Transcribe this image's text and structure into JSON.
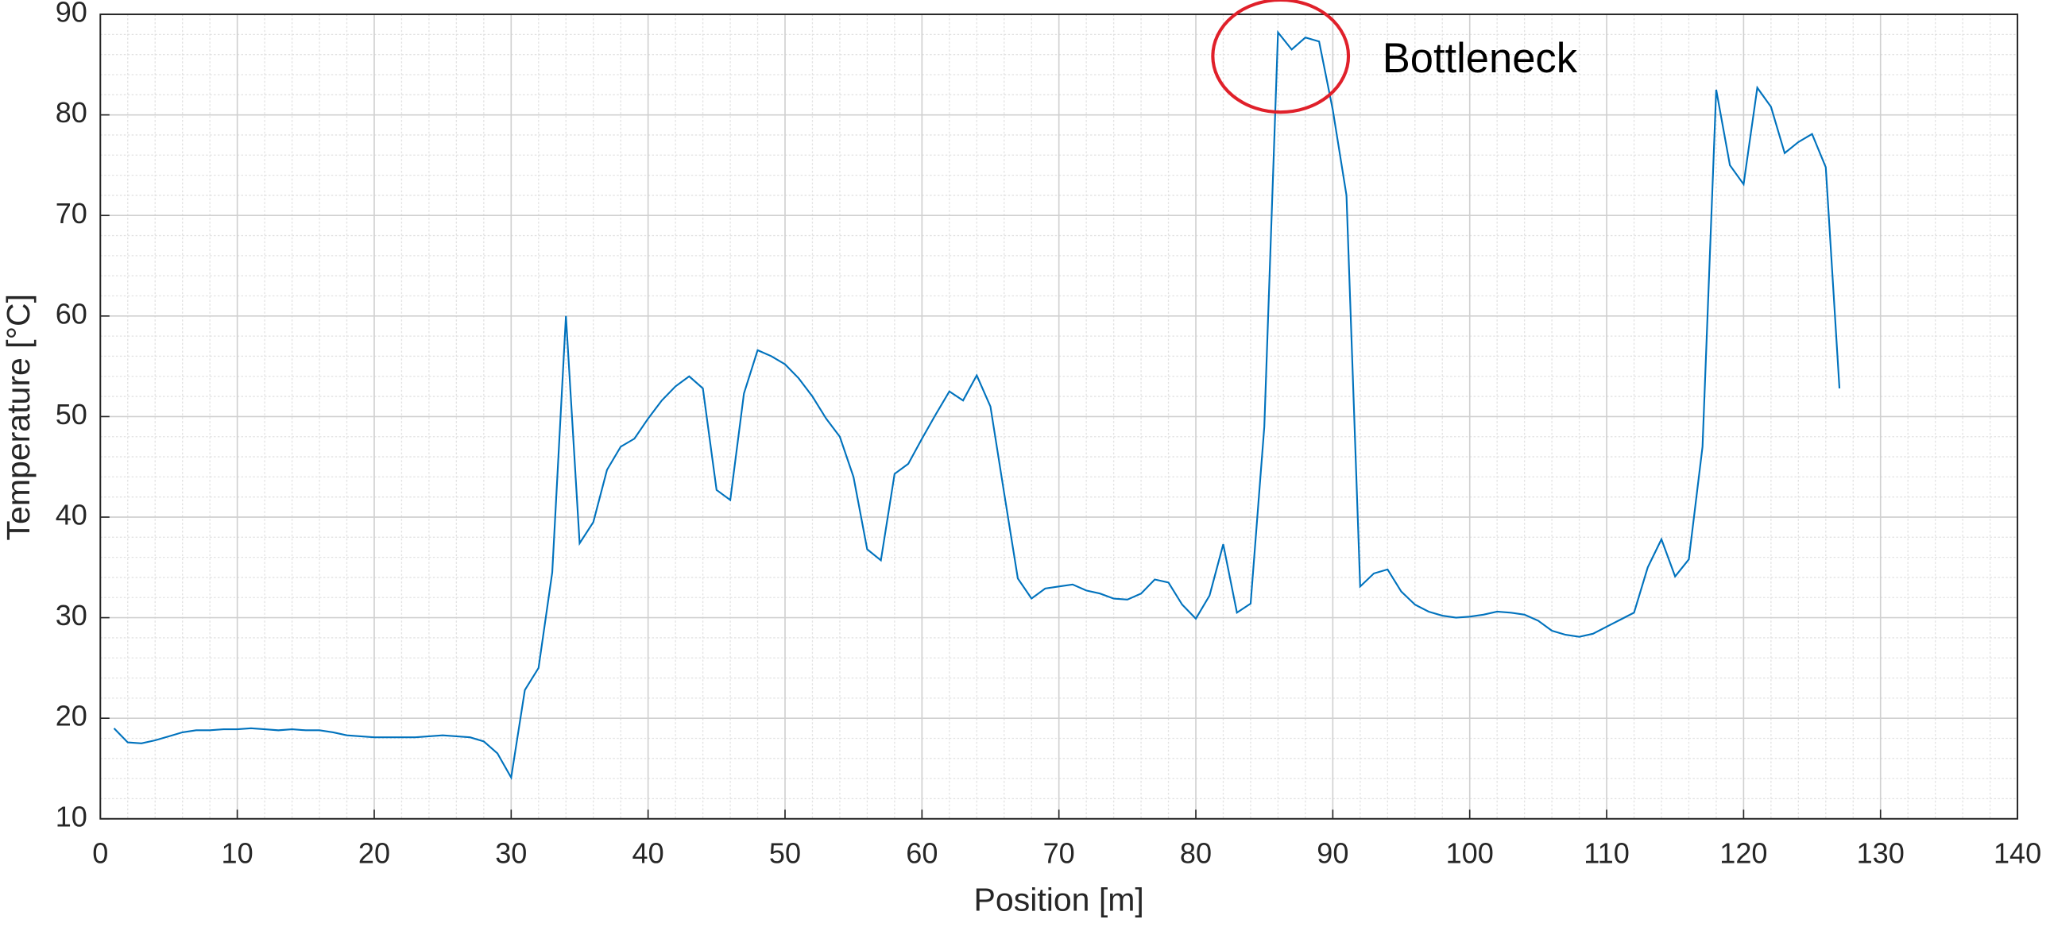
{
  "chart_data": {
    "type": "line",
    "xlabel": "Position [m]",
    "ylabel": "Temperature [°C]",
    "annotation": "Bottleneck",
    "x": [
      1,
      2,
      3,
      4,
      5,
      6,
      7,
      8,
      9,
      10,
      11,
      12,
      13,
      14,
      15,
      16,
      17,
      18,
      19,
      20,
      21,
      22,
      23,
      24,
      25,
      26,
      27,
      28,
      29,
      30,
      31,
      32,
      33,
      34,
      35,
      36,
      37,
      38,
      39,
      40,
      41,
      42,
      43,
      44,
      45,
      46,
      47,
      48,
      49,
      50,
      51,
      52,
      53,
      54,
      55,
      56,
      57,
      58,
      59,
      60,
      61,
      62,
      63,
      64,
      65,
      66,
      67,
      68,
      69,
      70,
      71,
      72,
      73,
      74,
      75,
      76,
      77,
      78,
      79,
      80,
      81,
      82,
      83,
      84,
      85,
      86,
      87,
      88,
      89,
      90,
      91,
      92,
      93,
      94,
      95,
      96,
      97,
      98,
      99,
      100,
      101,
      102,
      103,
      104,
      105,
      106,
      107,
      108,
      109,
      110,
      111,
      112,
      113,
      114,
      115,
      116,
      117,
      118,
      119,
      120,
      121,
      122,
      123,
      124,
      125,
      126,
      127
    ],
    "series": [
      {
        "color": "#0072bd",
        "values": [
          19,
          17.6,
          17.5,
          17.8,
          18.2,
          18.6,
          18.8,
          18.8,
          18.9,
          18.9,
          19,
          18.9,
          18.8,
          18.9,
          18.8,
          18.8,
          18.6,
          18.3,
          18.2,
          18.1,
          18.1,
          18.1,
          18.1,
          18.2,
          18.3,
          18.2,
          18.1,
          17.7,
          16.5,
          14.1,
          22.8,
          25,
          34.5,
          60,
          37.4,
          39.5,
          44.7,
          47,
          47.8,
          49.8,
          51.6,
          53,
          54,
          52.8,
          42.7,
          41.7,
          52.3,
          56.6,
          56,
          55.2,
          53.8,
          52,
          49.8,
          48,
          44,
          36.8,
          35.7,
          44.3,
          45.3,
          47.8,
          50.2,
          52.5,
          51.6,
          54.1,
          51,
          42.4,
          33.9,
          31.9,
          32.9,
          33.1,
          33.3,
          32.7,
          32.4,
          31.9,
          31.8,
          32.4,
          33.8,
          33.5,
          31.3,
          29.9,
          32.2,
          37.3,
          30.5,
          31.4,
          49,
          88.2,
          86.5,
          87.7,
          87.3,
          80.5,
          72,
          33.1,
          34.4,
          34.8,
          32.6,
          31.3,
          30.6,
          30.2,
          30,
          30.1,
          30.3,
          30.6,
          30.5,
          30.3,
          29.7,
          28.7,
          28.3,
          28.1,
          28.4,
          29.1,
          29.8,
          30.5,
          35,
          37.8,
          34.1,
          35.8,
          47,
          82.5,
          75,
          73.1,
          82.7,
          80.8,
          76.2,
          77.3,
          78.1,
          74.8,
          52.8
        ]
      }
    ],
    "xlim": [
      0,
      140
    ],
    "xticks": [
      0,
      10,
      20,
      30,
      40,
      50,
      60,
      70,
      80,
      90,
      100,
      110,
      120,
      130,
      140
    ],
    "ylim": [
      10,
      90
    ],
    "yticks": [
      10,
      20,
      30,
      40,
      50,
      60,
      70,
      80,
      90
    ],
    "grid": true,
    "minor_grid": true
  }
}
